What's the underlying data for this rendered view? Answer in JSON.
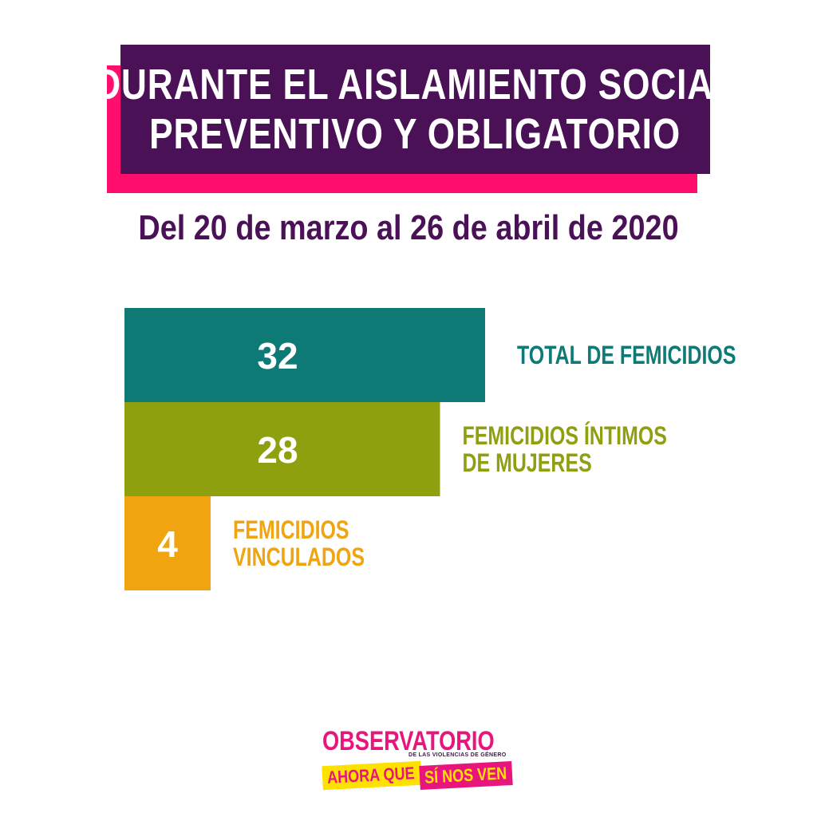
{
  "header": {
    "title_lines": [
      "DURANTE EL AISLAMIENTO SOCIAL",
      "PREVENTIVO Y OBLIGATORIO"
    ],
    "subtitle": "Del 20 de marzo al 26 de abril de 2020"
  },
  "colors": {
    "title_bg": "#4a1157",
    "title_shadow": "#ff0e6e",
    "subtitle_text": "#4a1157",
    "teal": "#0e7a76",
    "olive": "#8fa00e",
    "amber": "#f0a510",
    "white": "#ffffff",
    "logo_pink": "#e8157d",
    "logo_yellow": "#ffe100",
    "logo_purple": "#4a1157"
  },
  "chart_data": {
    "type": "bar",
    "orientation": "horizontal",
    "categories": [
      "TOTAL DE FEMICIDIOS",
      "FEMICIDIOS ÍNTIMOS DE MUJERES",
      "FEMICIDIOS VINCULADOS"
    ],
    "label_lines": [
      [
        "TOTAL DE FEMICIDIOS"
      ],
      [
        "FEMICIDIOS ÍNTIMOS",
        "DE MUJERES"
      ],
      [
        "FEMICIDIOS",
        "VINCULADOS"
      ]
    ],
    "values": [
      32,
      28,
      4
    ],
    "value_labels": [
      "32",
      "28",
      "4"
    ],
    "bar_colors": [
      "#0e7a76",
      "#8fa00e",
      "#f0a510"
    ]
  },
  "logo": {
    "top": "OBSERVATORIO",
    "sub": "DE LAS VIOLENCIAS DE GÉNERO",
    "bottom_a": "AHORA QUE",
    "bottom_b": "SÍ NOS VEN"
  }
}
